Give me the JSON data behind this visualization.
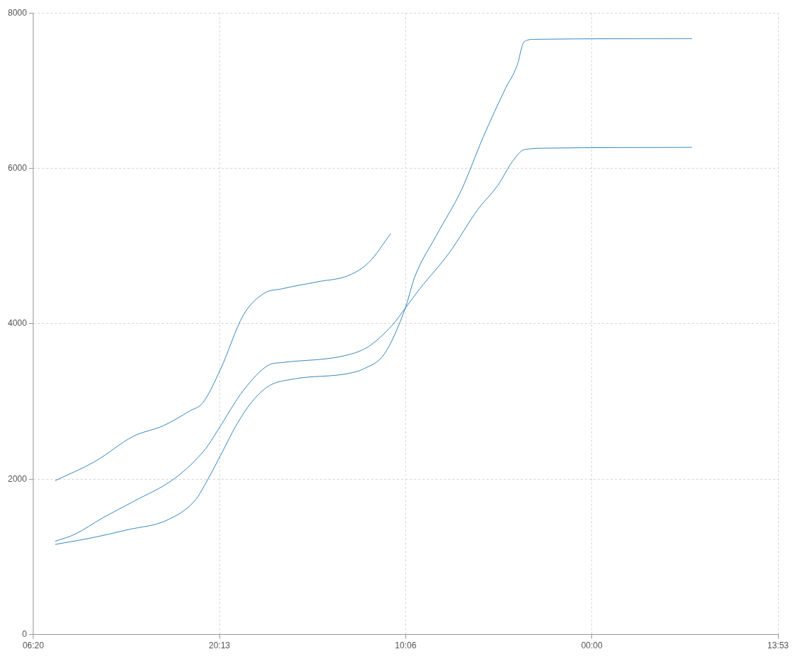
{
  "chart_data": {
    "type": "line",
    "xlim": [
      "2000-01-01T06:20",
      "2000-01-03T13:53:20"
    ],
    "xticks": [
      {
        "value": "2000-01-01T06:20",
        "label": "06:20"
      },
      {
        "value": "2000-01-01T20:13:20",
        "label": "20:13"
      },
      {
        "value": "2000-01-02T10:06:40",
        "label": "10:06"
      },
      {
        "value": "2000-01-03T00:00",
        "label": "00:00"
      },
      {
        "value": "2000-01-03T13:53:20",
        "label": "13:53"
      }
    ],
    "ylim": [
      0,
      8000
    ],
    "yticks": [
      0,
      2000,
      4000,
      6000,
      8000
    ],
    "grid": true,
    "legend": false,
    "line_style": "solid",
    "marker": "none",
    "series": [
      {
        "color": "#3a87c0",
        "x": [
          "2000-01-01T07:58",
          "2000-01-01T10:58",
          "2000-01-01T13:47",
          "2000-01-01T16:04",
          "2000-01-01T18:02",
          "2000-01-01T18:58",
          "2000-01-01T20:19",
          "2000-01-01T22:00",
          "2000-01-01T23:32",
          "2000-01-02T00:53",
          "2000-01-02T03:33",
          "2000-01-02T05:50",
          "2000-01-02T07:22",
          "2000-01-02T09:00"
        ],
        "values": [
          1980,
          2230,
          2550,
          2690,
          2880,
          2980,
          3420,
          4110,
          4390,
          4450,
          4540,
          4620,
          4790,
          5160
        ]
      },
      {
        "color": "#3a87c0",
        "x": [
          "2000-01-01T07:58",
          "2000-01-01T09:26",
          "2000-01-01T11:30",
          "2000-01-01T13:47",
          "2000-01-01T16:53",
          "2000-01-01T19:11",
          "2000-01-01T20:06",
          "2000-01-01T22:00",
          "2000-01-01T23:55",
          "2000-01-02T00:53",
          "2000-01-02T05:50",
          "2000-01-02T07:22",
          "2000-01-02T09:06",
          "2000-01-02T10:05",
          "2000-01-02T11:10",
          "2000-01-02T13:21",
          "2000-01-02T15:32",
          "2000-01-02T16:59",
          "2000-01-02T18:05",
          "2000-01-02T18:57",
          "2000-01-02T20:35",
          "2000-01-03T07:28"
        ],
        "values": [
          1200,
          1290,
          1500,
          1710,
          2010,
          2390,
          2630,
          3140,
          3470,
          3500,
          3600,
          3710,
          3980,
          4200,
          4450,
          4910,
          5480,
          5780,
          6090,
          6240,
          6260,
          6270
        ]
      },
      {
        "color": "#3a87c0",
        "x": [
          "2000-01-01T07:58",
          "2000-01-01T10:35",
          "2000-01-01T13:25",
          "2000-01-01T16:17",
          "2000-01-01T18:25",
          "2000-01-01T19:20",
          "2000-01-01T20:19",
          "2000-01-01T21:28",
          "2000-01-01T22:37",
          "2000-01-01T23:55",
          "2000-01-02T01:49",
          "2000-01-02T05:50",
          "2000-01-02T06:59",
          "2000-01-02T08:31",
          "2000-01-02T10:05",
          "2000-01-02T10:47",
          "2000-01-02T12:25",
          "2000-01-02T14:16",
          "2000-01-02T15:55",
          "2000-01-02T17:32",
          "2000-01-02T18:25",
          "2000-01-02T18:57",
          "2000-01-02T19:43",
          "2000-01-03T07:28"
        ],
        "values": [
          1160,
          1240,
          1350,
          1470,
          1730,
          1990,
          2310,
          2690,
          2990,
          3200,
          3290,
          3360,
          3420,
          3610,
          4200,
          4600,
          5140,
          5720,
          6410,
          7020,
          7320,
          7630,
          7660,
          7670
        ]
      }
    ]
  }
}
